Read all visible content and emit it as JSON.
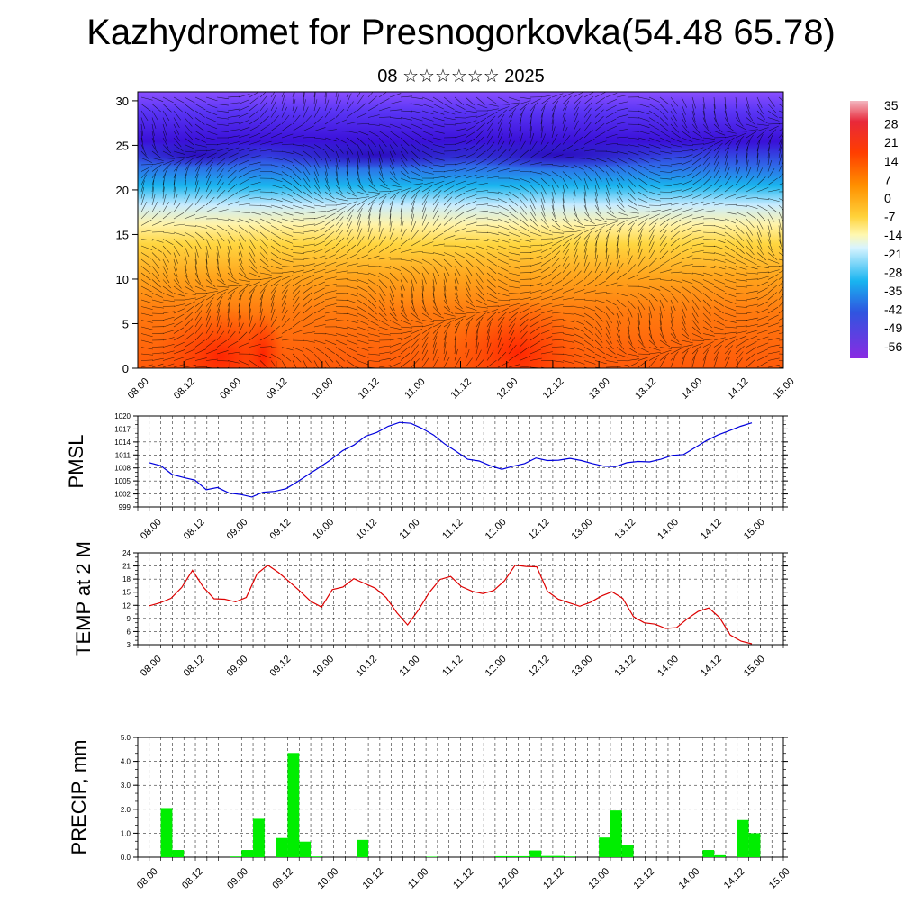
{
  "title": "Kazhydromet for Presnogorkovka(54.48 65.78)",
  "subtitle": "08 ☆☆☆☆☆☆ 2025",
  "time_labels": [
    "08.00",
    "08.12",
    "09.00",
    "09.12",
    "10.00",
    "10.12",
    "11.00",
    "11.12",
    "12.00",
    "12.12",
    "13.00",
    "13.12",
    "14.00",
    "14.12",
    "15.00"
  ],
  "colors": {
    "pmsl_line": "#0000dd",
    "temp_line": "#dd0000",
    "precip_bar": "#00ee00",
    "axis": "#000000"
  },
  "chart_data": [
    {
      "type": "heatmap",
      "title": "",
      "y_ticks": [
        0,
        5,
        10,
        15,
        20,
        25,
        30
      ],
      "ylim": [
        0,
        31
      ],
      "x_categories": [
        "08.00",
        "08.12",
        "09.00",
        "09.12",
        "10.00",
        "10.12",
        "11.00",
        "11.12",
        "12.00",
        "12.12",
        "13.00",
        "13.12",
        "14.00",
        "14.12",
        "15.00"
      ],
      "colorbar_labels": [
        "35",
        "28",
        "21",
        "14",
        "7",
        "0",
        "-7",
        "-14",
        "-21",
        "-28",
        "-35",
        "-42",
        "-49",
        "-56"
      ],
      "overlay": "wind barbs"
    },
    {
      "type": "line",
      "ylabel": "PMSL",
      "ylim": [
        999,
        1020
      ],
      "y_ticks": [
        "999",
        "1002",
        "1005",
        "1008",
        "1011",
        "1014",
        "1017",
        "1020"
      ],
      "series": [
        {
          "values": [
            1009.2,
            1008.5,
            1006.5,
            1005.8,
            1005.2,
            1003.0,
            1003.5,
            1002.2,
            1001.9,
            1001.3,
            1002.4,
            1002.6,
            1003.2,
            1004.8,
            1006.5,
            1008.2,
            1010.0,
            1012.0,
            1013.3,
            1015.3,
            1016.2,
            1017.6,
            1018.5,
            1018.3,
            1017.1,
            1015.6,
            1013.5,
            1011.8,
            1010.0,
            1009.6,
            1008.5,
            1007.7,
            1008.4,
            1009.0,
            1010.3,
            1009.7,
            1009.8,
            1010.2,
            1009.7,
            1009.0,
            1008.4,
            1008.3,
            1009.2,
            1009.5,
            1009.4,
            1010.0,
            1010.9,
            1011.1,
            1012.7,
            1014.3,
            1015.6,
            1016.6,
            1017.6,
            1018.4
          ]
        }
      ]
    },
    {
      "type": "line",
      "ylabel": "TEMP at 2 M",
      "ylim": [
        3,
        24
      ],
      "y_ticks": [
        "3",
        "6",
        "9",
        "12",
        "15",
        "18",
        "21",
        "24"
      ],
      "series": [
        {
          "values": [
            11.9,
            12.6,
            13.6,
            16.1,
            20.0,
            16.2,
            13.5,
            13.4,
            12.8,
            13.8,
            19.2,
            21.2,
            19.5,
            17.4,
            15.2,
            12.9,
            11.6,
            15.6,
            16.2,
            18.1,
            17.0,
            15.9,
            13.8,
            10.3,
            7.5,
            10.9,
            14.9,
            17.9,
            18.6,
            16.3,
            15.2,
            14.7,
            15.4,
            17.6,
            21.2,
            20.9,
            20.8,
            15.2,
            13.4,
            12.6,
            11.8,
            12.7,
            14.1,
            15.1,
            13.6,
            9.4,
            8.0,
            7.7,
            6.7,
            6.9,
            8.9,
            10.6,
            11.4,
            9.2,
            5.2,
            3.8,
            3.2
          ]
        }
      ]
    },
    {
      "type": "bar",
      "ylabel": "PRECIP, mm",
      "ylim": [
        0,
        5
      ],
      "y_ticks": [
        "0.0",
        "1.0",
        "2.0",
        "3.0",
        "4.0",
        "5.0"
      ],
      "values": [
        0,
        0,
        2.05,
        0.3,
        0,
        0,
        0,
        0,
        0.03,
        0.3,
        1.6,
        0,
        0.8,
        4.35,
        0.65,
        0.03,
        0,
        0,
        0,
        0.72,
        0,
        0,
        0,
        0,
        0,
        0.02,
        0,
        0,
        0,
        0,
        0,
        0.04,
        0.04,
        0.04,
        0.28,
        0.05,
        0.05,
        0.03,
        0,
        0,
        0.82,
        1.95,
        0.5,
        0,
        0,
        0,
        0,
        0,
        0,
        0.3,
        0.08,
        0,
        1.55,
        1.0,
        0,
        0,
        0,
        0,
        0,
        0,
        0,
        0,
        0,
        0,
        0,
        0,
        0,
        0
      ]
    }
  ]
}
